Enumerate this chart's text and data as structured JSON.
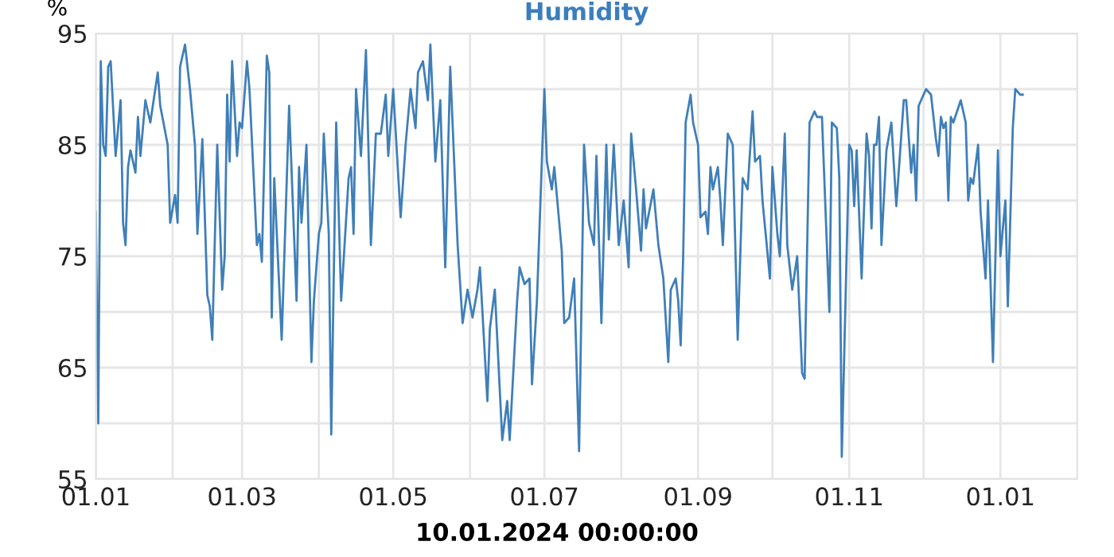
{
  "chart_data": {
    "type": "line",
    "title": "Humidity",
    "ylabel": "%",
    "annotations": [
      "10.01.2024 00:00:00"
    ],
    "xlim": [
      "2023-01-01",
      "2024-02-01"
    ],
    "xticks": [
      {
        "value": "2023-01-01",
        "label": "01.01"
      },
      {
        "value": "2023-02-01",
        "label": null
      },
      {
        "value": "2023-03-01",
        "label": "01.03"
      },
      {
        "value": "2023-04-01",
        "label": null
      },
      {
        "value": "2023-05-01",
        "label": "01.05"
      },
      {
        "value": "2023-06-01",
        "label": null
      },
      {
        "value": "2023-07-01",
        "label": "01.07"
      },
      {
        "value": "2023-08-01",
        "label": null
      },
      {
        "value": "2023-09-01",
        "label": "01.09"
      },
      {
        "value": "2023-10-01",
        "label": null
      },
      {
        "value": "2023-11-01",
        "label": "01.11"
      },
      {
        "value": "2023-12-01",
        "label": null
      },
      {
        "value": "2024-01-01",
        "label": "01.01"
      }
    ],
    "ylim": [
      55,
      95
    ],
    "yticks": [
      55,
      {
        "value": 60,
        "label": null
      },
      65,
      {
        "value": 70,
        "label": null
      },
      75,
      {
        "value": 80,
        "label": null
      },
      85,
      {
        "value": 90,
        "label": null
      },
      95
    ],
    "grid": true,
    "marker": "none",
    "line_style": "solid",
    "series": [
      {
        "color": "#3f7fb8",
        "x": [
          "2023-01-01",
          "2023-01-02",
          "2023-01-03",
          "2023-01-04",
          "2023-01-05",
          "2023-01-06",
          "2023-01-07",
          "2023-01-09",
          "2023-01-11",
          "2023-01-12",
          "2023-01-13",
          "2023-01-14",
          "2023-01-15",
          "2023-01-17",
          "2023-01-18",
          "2023-01-19",
          "2023-01-21",
          "2023-01-23",
          "2023-01-26",
          "2023-01-27",
          "2023-01-30",
          "2023-01-31",
          "2023-02-02",
          "2023-02-03",
          "2023-02-04",
          "2023-02-06",
          "2023-02-08",
          "2023-02-10",
          "2023-02-11",
          "2023-02-13",
          "2023-02-15",
          "2023-02-16",
          "2023-02-17",
          "2023-02-19",
          "2023-02-21",
          "2023-02-22",
          "2023-02-23",
          "2023-02-24",
          "2023-02-25",
          "2023-02-27",
          "2023-02-28",
          "2023-03-01",
          "2023-03-03",
          "2023-03-04",
          "2023-03-07",
          "2023-03-08",
          "2023-03-09",
          "2023-03-11",
          "2023-03-12",
          "2023-03-13",
          "2023-03-14",
          "2023-03-17",
          "2023-03-20",
          "2023-03-23",
          "2023-03-24",
          "2023-03-25",
          "2023-03-27",
          "2023-03-29",
          "2023-03-30",
          "2023-04-01",
          "2023-04-02",
          "2023-04-03",
          "2023-04-05",
          "2023-04-06",
          "2023-04-08",
          "2023-04-10",
          "2023-04-13",
          "2023-04-14",
          "2023-04-15",
          "2023-04-16",
          "2023-04-18",
          "2023-04-20",
          "2023-04-22",
          "2023-04-24",
          "2023-04-26",
          "2023-04-28",
          "2023-04-29",
          "2023-05-01",
          "2023-05-04",
          "2023-05-06",
          "2023-05-08",
          "2023-05-10",
          "2023-05-11",
          "2023-05-13",
          "2023-05-15",
          "2023-05-16",
          "2023-05-18",
          "2023-05-20",
          "2023-05-22",
          "2023-05-24",
          "2023-05-27",
          "2023-05-29",
          "2023-05-31",
          "2023-06-02",
          "2023-06-04",
          "2023-06-05",
          "2023-06-08",
          "2023-06-09",
          "2023-06-11",
          "2023-06-14",
          "2023-06-16",
          "2023-06-17",
          "2023-06-20",
          "2023-06-21",
          "2023-06-23",
          "2023-06-25",
          "2023-06-26",
          "2023-06-28",
          "2023-07-01",
          "2023-07-02",
          "2023-07-04",
          "2023-07-05",
          "2023-07-08",
          "2023-07-09",
          "2023-07-11",
          "2023-07-13",
          "2023-07-15",
          "2023-07-17",
          "2023-07-19",
          "2023-07-21",
          "2023-07-22",
          "2023-07-24",
          "2023-07-26",
          "2023-07-27",
          "2023-07-29",
          "2023-07-31",
          "2023-08-02",
          "2023-08-04",
          "2023-08-05",
          "2023-08-07",
          "2023-08-09",
          "2023-08-10",
          "2023-08-11",
          "2023-08-14",
          "2023-08-16",
          "2023-08-18",
          "2023-08-20",
          "2023-08-21",
          "2023-08-23",
          "2023-08-24",
          "2023-08-25",
          "2023-08-26",
          "2023-08-27",
          "2023-08-29",
          "2023-08-30",
          "2023-09-01",
          "2023-09-02",
          "2023-09-04",
          "2023-09-05",
          "2023-09-06",
          "2023-09-07",
          "2023-09-09",
          "2023-09-10",
          "2023-09-11",
          "2023-09-13",
          "2023-09-15",
          "2023-09-17",
          "2023-09-19",
          "2023-09-21",
          "2023-09-23",
          "2023-09-24",
          "2023-09-26",
          "2023-09-27",
          "2023-09-30",
          "2023-10-01",
          "2023-10-03",
          "2023-10-04",
          "2023-10-06",
          "2023-10-07",
          "2023-10-09",
          "2023-10-11",
          "2023-10-13",
          "2023-10-14",
          "2023-10-16",
          "2023-10-18",
          "2023-10-19",
          "2023-10-21",
          "2023-10-24",
          "2023-10-25",
          "2023-10-27",
          "2023-10-28",
          "2023-10-29",
          "2023-11-01",
          "2023-11-02",
          "2023-11-03",
          "2023-11-04",
          "2023-11-06",
          "2023-11-08",
          "2023-11-09",
          "2023-11-10",
          "2023-11-11",
          "2023-11-12",
          "2023-11-13",
          "2023-11-14",
          "2023-11-16",
          "2023-11-18",
          "2023-11-20",
          "2023-11-23",
          "2023-11-24",
          "2023-11-26",
          "2023-11-27",
          "2023-11-28",
          "2023-11-29",
          "2023-12-02",
          "2023-12-04",
          "2023-12-06",
          "2023-12-07",
          "2023-12-08",
          "2023-12-09",
          "2023-12-10",
          "2023-12-11",
          "2023-12-12",
          "2023-12-13",
          "2023-12-16",
          "2023-12-18",
          "2023-12-19",
          "2023-12-20",
          "2023-12-21",
          "2023-12-23",
          "2023-12-24",
          "2023-12-26",
          "2023-12-27",
          "2023-12-29",
          "2023-12-31",
          "2024-01-01",
          "2024-01-03",
          "2024-01-04",
          "2024-01-06",
          "2024-01-07",
          "2024-01-09",
          "2024-01-10"
        ],
        "values": [
          79,
          60,
          92.5,
          85,
          84,
          92,
          92.5,
          84,
          89,
          78,
          76,
          83,
          84.5,
          82.5,
          87.5,
          84,
          89,
          87,
          91.5,
          88.5,
          85,
          78,
          80.5,
          78,
          92,
          94,
          90,
          85,
          77,
          85.5,
          71.5,
          70.5,
          67.5,
          85,
          72,
          75,
          89.5,
          83.5,
          92.5,
          84,
          87,
          86.5,
          92.5,
          90,
          76,
          77,
          74.5,
          93,
          91.5,
          69.5,
          82,
          67.5,
          88.5,
          71,
          83,
          78,
          85,
          65.5,
          71,
          77,
          78,
          86,
          77,
          59,
          87,
          71,
          82,
          83,
          77,
          90,
          84,
          93.5,
          76,
          86,
          86,
          89.5,
          84,
          90,
          78.5,
          85,
          90,
          86.5,
          91.5,
          92.5,
          89,
          94,
          83.5,
          89,
          74,
          92,
          76,
          69,
          72,
          69.5,
          72,
          74,
          62,
          68.5,
          72,
          58.5,
          62,
          58.5,
          71,
          74,
          72.5,
          73,
          63.5,
          71,
          90,
          83.5,
          81,
          83,
          75.5,
          69,
          69.5,
          73,
          57.5,
          85,
          78,
          76,
          84,
          69,
          85,
          76.5,
          85,
          76,
          80,
          74,
          86,
          81,
          75.5,
          81,
          77.5,
          81,
          76,
          73,
          65.5,
          72,
          73,
          71,
          67,
          75,
          87,
          89.5,
          87,
          85,
          78.5,
          79,
          77,
          83,
          81,
          83,
          80,
          76,
          86,
          85,
          67.5,
          82,
          81,
          88,
          83.5,
          84,
          80,
          73,
          83,
          77,
          75,
          86,
          76,
          72,
          75,
          64.5,
          64,
          87,
          88,
          87.5,
          87.5,
          70,
          87,
          86.5,
          82,
          57,
          85,
          84.5,
          79.5,
          84.5,
          73,
          86,
          84,
          77.5,
          85,
          85,
          87.5,
          76,
          84.5,
          87,
          79.5,
          89,
          89,
          82.5,
          85,
          80,
          88.5,
          90,
          89.5,
          85.5,
          84,
          87.5,
          86.5,
          87,
          80,
          87.5,
          87,
          89,
          87,
          80,
          82,
          81.5,
          85,
          79,
          73,
          80,
          65.5,
          84.5,
          75,
          80,
          70.5,
          86.5,
          90,
          89.5,
          89.5
        ]
      }
    ]
  }
}
